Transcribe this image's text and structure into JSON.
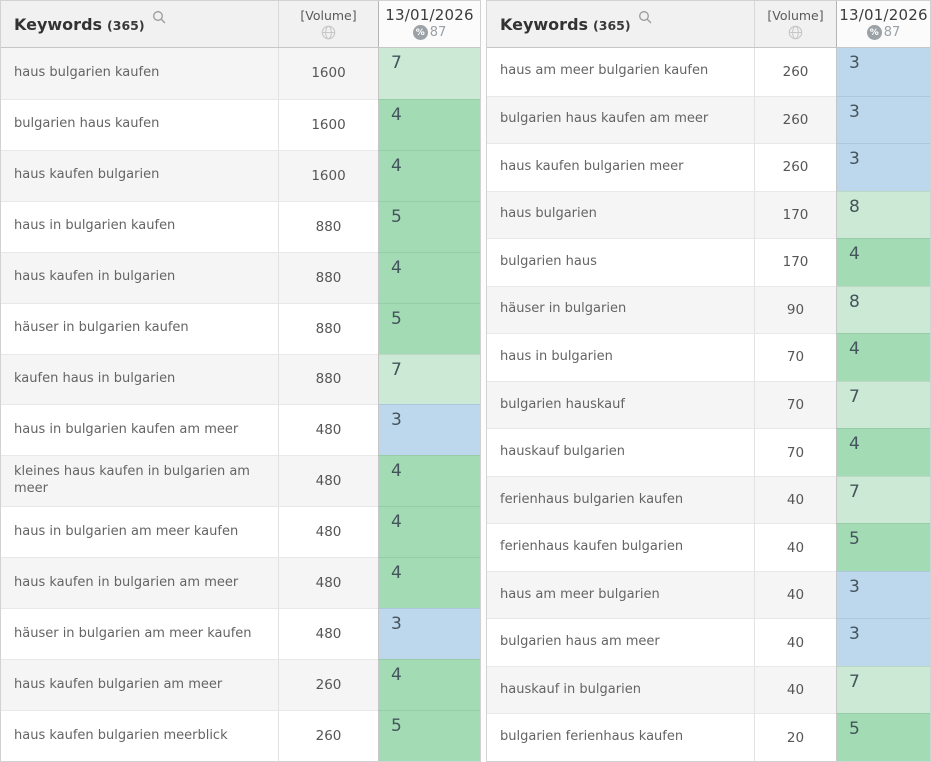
{
  "rank_colors": {
    "blue": "#bdd7ec",
    "green": "#a3dcb4",
    "light_green": "#cbe9d4"
  },
  "panels": [
    {
      "header": {
        "title": "Keywords",
        "count": "(365)",
        "volume_label": "[Volume]",
        "date": "13/01/2026",
        "percent_icon": "%",
        "score": "87"
      },
      "first_row_shaded": true,
      "rows": [
        {
          "keyword": "haus bulgarien kaufen",
          "volume": "1600",
          "rank": "7"
        },
        {
          "keyword": "bulgarien haus kaufen",
          "volume": "1600",
          "rank": "4"
        },
        {
          "keyword": "haus kaufen bulgarien",
          "volume": "1600",
          "rank": "4"
        },
        {
          "keyword": "haus in bulgarien kaufen",
          "volume": "880",
          "rank": "5"
        },
        {
          "keyword": "haus kaufen in bulgarien",
          "volume": "880",
          "rank": "4"
        },
        {
          "keyword": "häuser in bulgarien kaufen",
          "volume": "880",
          "rank": "5"
        },
        {
          "keyword": "kaufen haus in bulgarien",
          "volume": "880",
          "rank": "7"
        },
        {
          "keyword": "haus in bulgarien kaufen am meer",
          "volume": "480",
          "rank": "3"
        },
        {
          "keyword": "kleines haus kaufen in bulgarien am meer",
          "volume": "480",
          "rank": "4"
        },
        {
          "keyword": "haus in bulgarien am meer kaufen",
          "volume": "480",
          "rank": "4"
        },
        {
          "keyword": "haus kaufen in bulgarien am meer",
          "volume": "480",
          "rank": "4"
        },
        {
          "keyword": "häuser in bulgarien am meer kaufen",
          "volume": "480",
          "rank": "3"
        },
        {
          "keyword": "haus kaufen bulgarien am meer",
          "volume": "260",
          "rank": "4"
        },
        {
          "keyword": "haus kaufen bulgarien meerblick",
          "volume": "260",
          "rank": "5"
        }
      ]
    },
    {
      "header": {
        "title": "Keywords",
        "count": "(365)",
        "volume_label": "[Volume]",
        "date": "13/01/2026",
        "percent_icon": "%",
        "score": "87"
      },
      "first_row_shaded": false,
      "rows": [
        {
          "keyword": "haus am meer bulgarien kaufen",
          "volume": "260",
          "rank": "3"
        },
        {
          "keyword": "bulgarien haus kaufen am meer",
          "volume": "260",
          "rank": "3"
        },
        {
          "keyword": "haus kaufen bulgarien meer",
          "volume": "260",
          "rank": "3"
        },
        {
          "keyword": "haus bulgarien",
          "volume": "170",
          "rank": "8"
        },
        {
          "keyword": "bulgarien haus",
          "volume": "170",
          "rank": "4"
        },
        {
          "keyword": "häuser in bulgarien",
          "volume": "90",
          "rank": "8"
        },
        {
          "keyword": "haus in bulgarien",
          "volume": "70",
          "rank": "4"
        },
        {
          "keyword": "bulgarien hauskauf",
          "volume": "70",
          "rank": "7"
        },
        {
          "keyword": "hauskauf bulgarien",
          "volume": "70",
          "rank": "4"
        },
        {
          "keyword": "ferienhaus bulgarien kaufen",
          "volume": "40",
          "rank": "7"
        },
        {
          "keyword": "ferienhaus kaufen bulgarien",
          "volume": "40",
          "rank": "5"
        },
        {
          "keyword": "haus am meer bulgarien",
          "volume": "40",
          "rank": "3"
        },
        {
          "keyword": "bulgarien haus am meer",
          "volume": "40",
          "rank": "3"
        },
        {
          "keyword": "hauskauf in bulgarien",
          "volume": "40",
          "rank": "7"
        },
        {
          "keyword": "bulgarien ferienhaus kaufen",
          "volume": "20",
          "rank": "5"
        }
      ]
    }
  ]
}
